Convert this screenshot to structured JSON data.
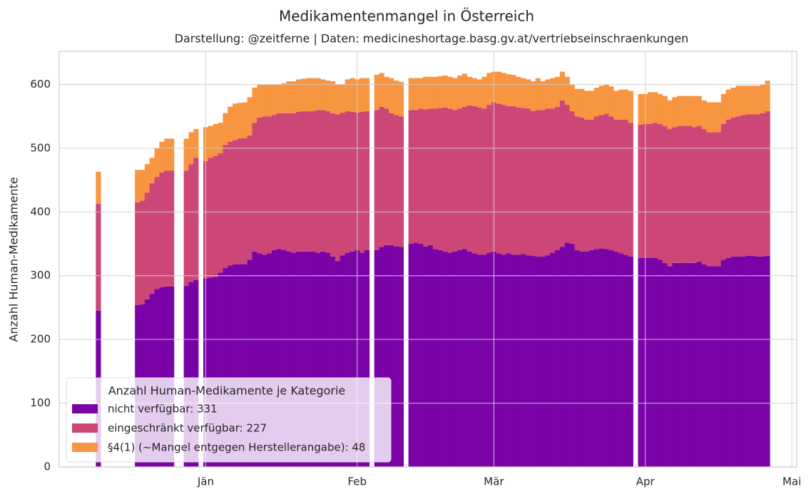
{
  "chart_data": {
    "type": "bar",
    "stacked": true,
    "title": "Medikamentenmangel in Österreich",
    "subtitle": "Darstellung: @zeitferne | Daten: medicineshortage.basg.gv.at/vertriebseinschraenkungen",
    "y_label": "Anzahl Human-Medikamente",
    "legend_title": "Anzahl Human-Medikamente je Kategorie",
    "legend_position": "lower left",
    "grid": true,
    "xlim": [
      -30,
      121
    ],
    "xticks": [
      {
        "value": 0,
        "label": "Jän"
      },
      {
        "value": 31,
        "label": "Feb"
      },
      {
        "value": 59,
        "label": "Mär"
      },
      {
        "value": 90,
        "label": "Apr"
      },
      {
        "value": 120,
        "label": "Mai"
      }
    ],
    "ylim": [
      0,
      652
    ],
    "yticks": [
      0,
      100,
      200,
      300,
      400,
      500,
      600
    ],
    "x": [
      -22,
      -14,
      -13,
      -12,
      -11,
      -10,
      -9,
      -8,
      -7,
      -4,
      -3,
      -2,
      0,
      1,
      2,
      3,
      4,
      5,
      6,
      7,
      8,
      9,
      10,
      11,
      12,
      13,
      14,
      15,
      16,
      17,
      18,
      19,
      20,
      21,
      22,
      23,
      24,
      25,
      26,
      27,
      28,
      29,
      30,
      31,
      32,
      33,
      35,
      36,
      37,
      38,
      39,
      40,
      42,
      43,
      44,
      45,
      46,
      47,
      48,
      49,
      50,
      51,
      52,
      53,
      54,
      55,
      56,
      57,
      58,
      59,
      60,
      61,
      62,
      63,
      64,
      65,
      66,
      67,
      68,
      69,
      70,
      71,
      72,
      73,
      74,
      75,
      76,
      77,
      78,
      79,
      80,
      81,
      82,
      83,
      84,
      85,
      86,
      87,
      89,
      90,
      91,
      92,
      93,
      94,
      95,
      96,
      97,
      98,
      99,
      100,
      101,
      102,
      103,
      104,
      105,
      106,
      107,
      108,
      109,
      110,
      111,
      112,
      113,
      114,
      115
    ],
    "series": [
      {
        "name": "nicht verfügbar: 331",
        "color": "#7a03a8",
        "values": [
          245,
          254,
          255,
          263,
          272,
          279,
          282,
          283,
          283,
          284,
          290,
          293,
          296,
          297,
          298,
          305,
          312,
          316,
          318,
          318,
          318,
          325,
          338,
          335,
          333,
          335,
          340,
          342,
          340,
          338,
          336,
          338,
          338,
          338,
          338,
          336,
          338,
          336,
          330,
          323,
          332,
          336,
          338,
          340,
          336,
          340,
          340,
          345,
          348,
          348,
          346,
          345,
          350,
          352,
          350,
          346,
          348,
          342,
          340,
          338,
          336,
          338,
          340,
          342,
          338,
          335,
          333,
          333,
          336,
          338,
          335,
          333,
          335,
          333,
          333,
          334,
          332,
          331,
          330,
          330,
          332,
          336,
          340,
          345,
          352,
          350,
          340,
          338,
          338,
          340,
          342,
          343,
          342,
          340,
          338,
          335,
          333,
          330,
          328,
          328,
          328,
          328,
          325,
          320,
          315,
          320,
          320,
          320,
          320,
          320,
          322,
          318,
          315,
          315,
          315,
          325,
          328,
          330,
          330,
          330,
          331,
          331,
          330,
          330,
          331
        ]
      },
      {
        "name": "eingeschränkt verfügbar: 227",
        "color": "#cc4778",
        "values": [
          168,
          161,
          163,
          167,
          173,
          176,
          180,
          182,
          182,
          181,
          185,
          192,
          184,
          188,
          190,
          187,
          193,
          194,
          195,
          197,
          198,
          195,
          202,
          213,
          217,
          215,
          212,
          213,
          215,
          217,
          219,
          219,
          220,
          220,
          220,
          224,
          222,
          222,
          225,
          230,
          224,
          222,
          219,
          216,
          221,
          218,
          220,
          220,
          214,
          207,
          206,
          205,
          210,
          208,
          212,
          215,
          214,
          220,
          223,
          226,
          226,
          222,
          222,
          223,
          229,
          231,
          231,
          229,
          232,
          234,
          235,
          235,
          231,
          233,
          231,
          229,
          230,
          227,
          230,
          230,
          230,
          226,
          225,
          230,
          216,
          208,
          210,
          210,
          207,
          205,
          208,
          209,
          212,
          210,
          207,
          210,
          212,
          210,
          209,
          210,
          210,
          212,
          213,
          215,
          215,
          213,
          215,
          215,
          215,
          213,
          213,
          212,
          210,
          210,
          210,
          213,
          217,
          218,
          220,
          222,
          222,
          222,
          223,
          225,
          227
        ]
      },
      {
        "name": "§4(1) (~Mangel entgegen Herstellerangabe): 48",
        "color": "#f89540",
        "values": [
          50,
          51,
          48,
          45,
          40,
          45,
          48,
          50,
          50,
          50,
          50,
          45,
          53,
          50,
          50,
          48,
          50,
          55,
          57,
          56,
          56,
          60,
          55,
          52,
          50,
          50,
          48,
          45,
          47,
          50,
          50,
          51,
          51,
          52,
          52,
          50,
          48,
          48,
          50,
          47,
          44,
          50,
          53,
          52,
          53,
          52,
          55,
          53,
          50,
          55,
          54,
          54,
          50,
          50,
          48,
          51,
          50,
          50,
          50,
          50,
          50,
          50,
          52,
          52,
          45,
          44,
          44,
          50,
          50,
          48,
          50,
          50,
          50,
          49,
          48,
          47,
          46,
          47,
          50,
          45,
          46,
          48,
          47,
          45,
          44,
          42,
          43,
          45,
          45,
          45,
          45,
          46,
          46,
          47,
          45,
          47,
          47,
          50,
          48,
          47,
          50,
          48,
          47,
          47,
          45,
          47,
          47,
          47,
          47,
          49,
          47,
          45,
          47,
          47,
          47,
          47,
          47,
          47,
          48,
          46,
          45,
          45,
          45,
          45,
          48
        ]
      }
    ]
  }
}
